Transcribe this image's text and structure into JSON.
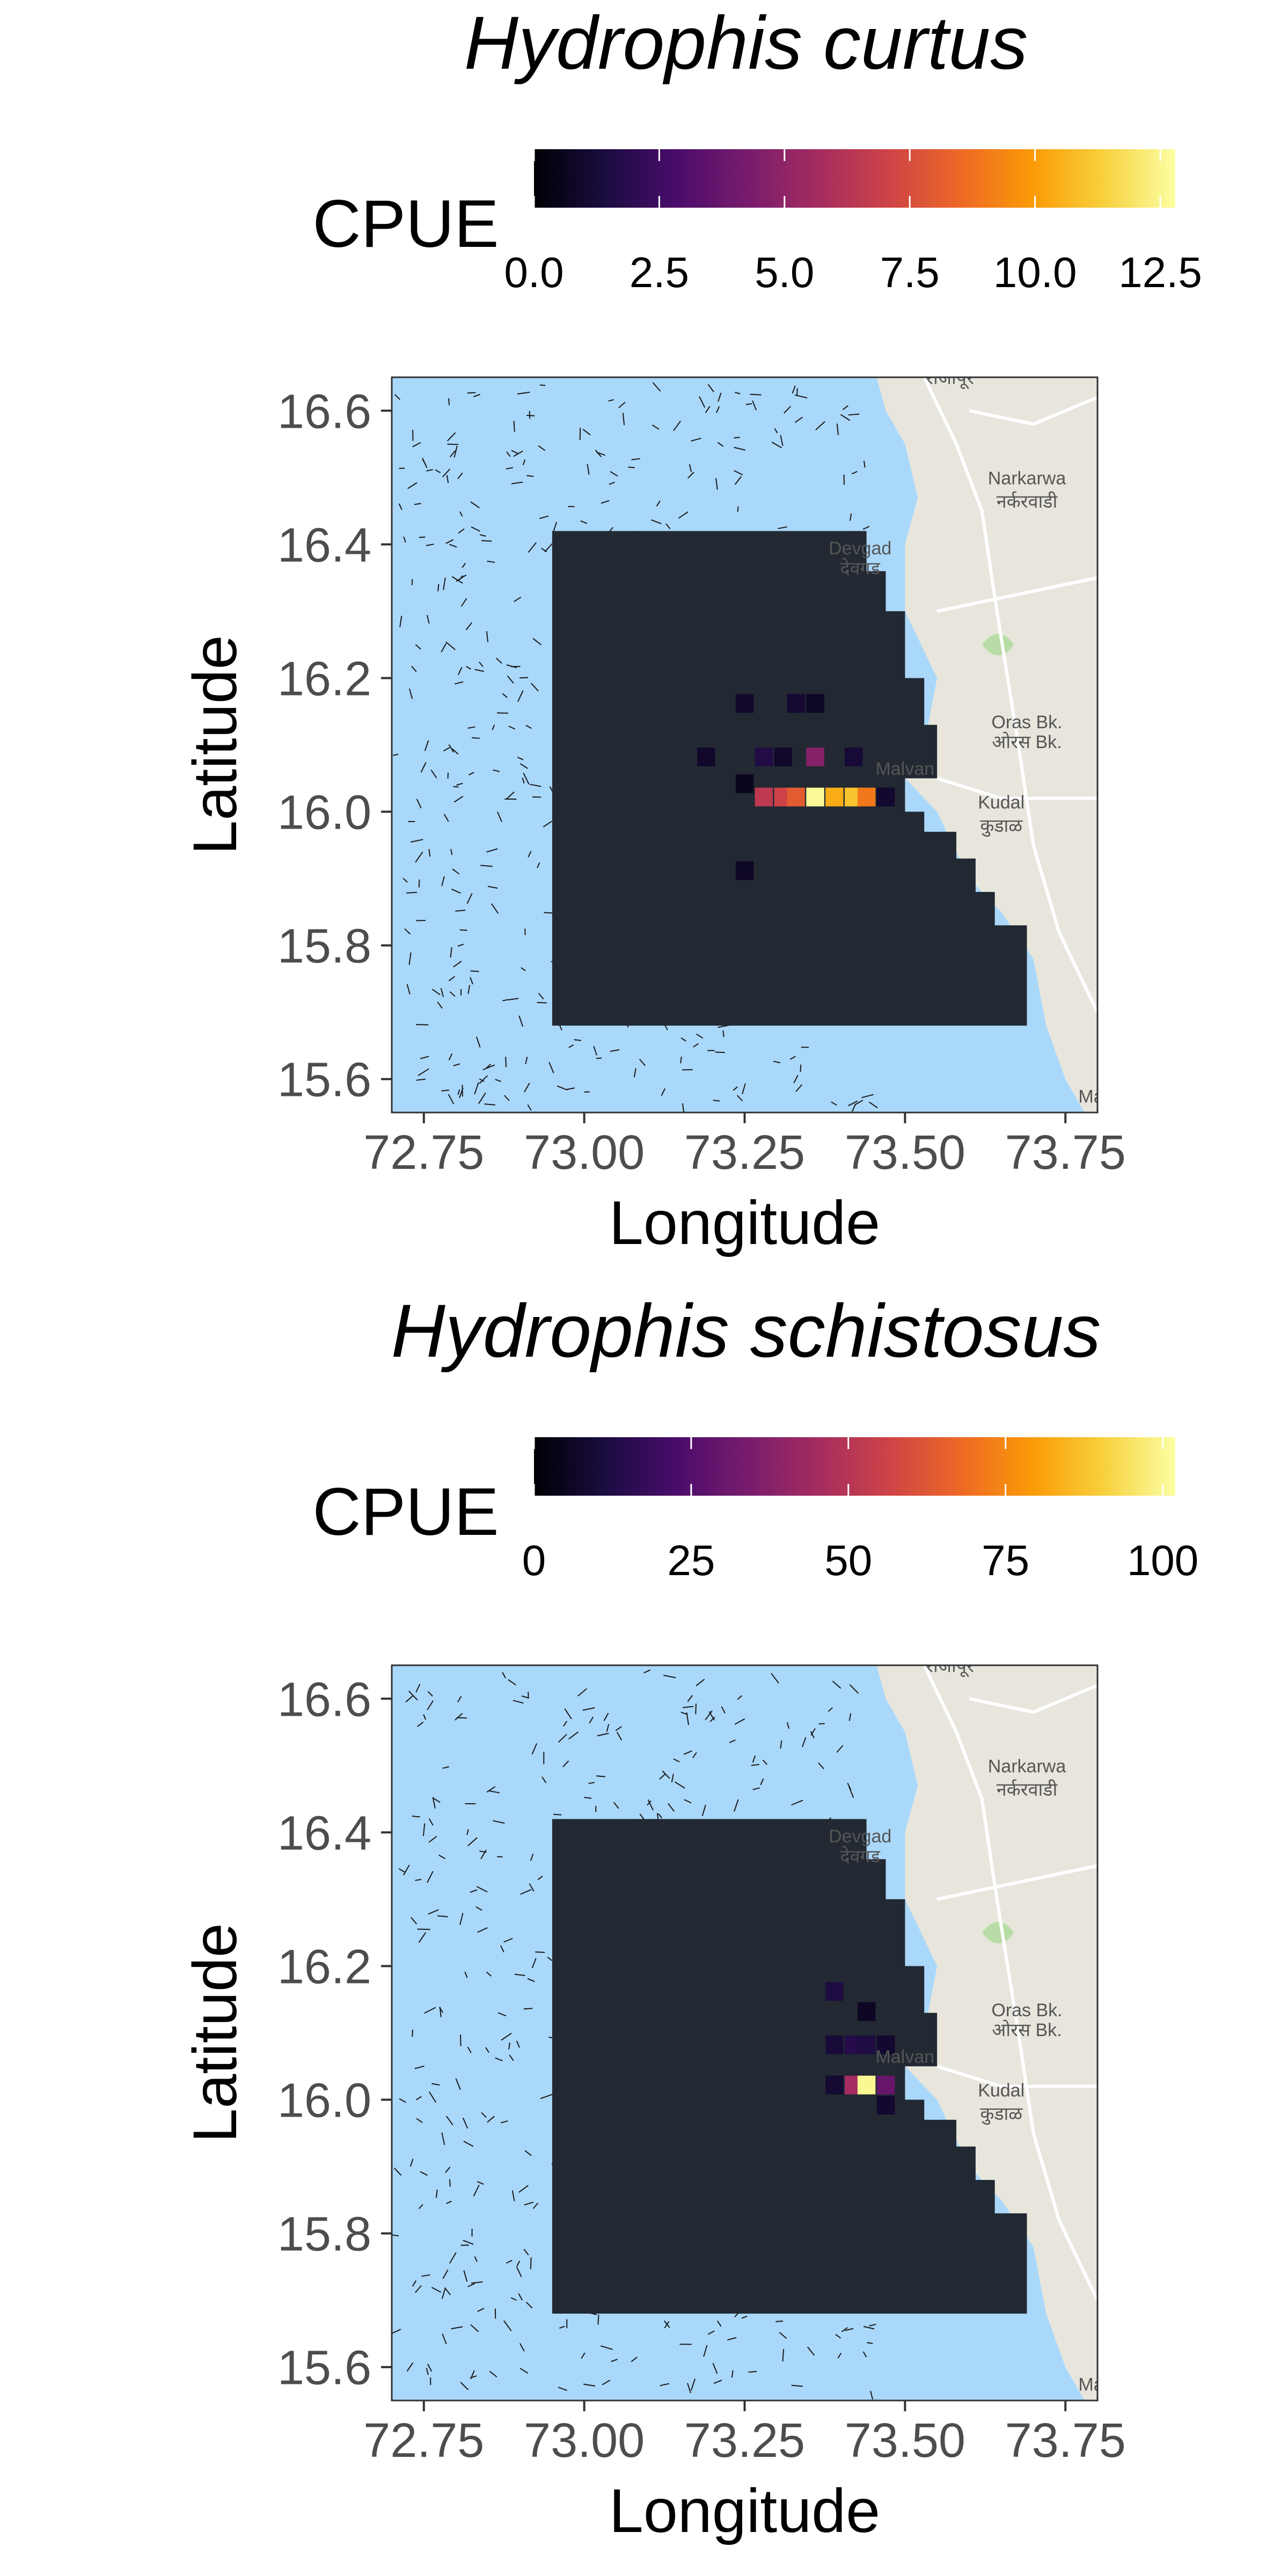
{
  "chart_data": [
    {
      "type": "heatmap",
      "title": "Hydrophis curtus",
      "xlabel": "Longitude",
      "ylabel": "Latitude",
      "xlim": [
        72.7,
        73.8
      ],
      "ylim": [
        15.55,
        16.65
      ],
      "x_ticks": [
        "72.75",
        "73.00",
        "73.25",
        "73.50",
        "73.75"
      ],
      "y_ticks": [
        "15.6",
        "15.8",
        "16.0",
        "16.2",
        "16.4",
        "16.6"
      ],
      "legend": {
        "title": "CPUE",
        "position": "top",
        "min": 0,
        "max": 12.8,
        "tick_labels": [
          "0.0",
          "2.5",
          "5.0",
          "7.5",
          "10.0",
          "12.5"
        ],
        "tick_values": [
          0,
          2.5,
          5,
          7.5,
          10,
          12.5
        ]
      },
      "grid": false,
      "cells": [
        {
          "lon": 73.25,
          "lat": 16.19,
          "cpue": 0.9
        },
        {
          "lon": 73.33,
          "lat": 16.19,
          "cpue": 1.1
        },
        {
          "lon": 73.36,
          "lat": 16.19,
          "cpue": 0.8
        },
        {
          "lon": 73.19,
          "lat": 16.11,
          "cpue": 0.9
        },
        {
          "lon": 73.28,
          "lat": 16.11,
          "cpue": 1.6
        },
        {
          "lon": 73.31,
          "lat": 16.11,
          "cpue": 0.9
        },
        {
          "lon": 73.36,
          "lat": 16.11,
          "cpue": 4.7
        },
        {
          "lon": 73.42,
          "lat": 16.11,
          "cpue": 1.2
        },
        {
          "lon": 73.25,
          "lat": 16.07,
          "cpue": 0.6
        },
        {
          "lon": 73.28,
          "lat": 16.05,
          "cpue": 6.5
        },
        {
          "lon": 73.31,
          "lat": 16.05,
          "cpue": 7.0
        },
        {
          "lon": 73.33,
          "lat": 16.05,
          "cpue": 8.0
        },
        {
          "lon": 73.36,
          "lat": 16.05,
          "cpue": 12.6
        },
        {
          "lon": 73.39,
          "lat": 16.05,
          "cpue": 10.4
        },
        {
          "lon": 73.42,
          "lat": 16.05,
          "cpue": 11.0
        },
        {
          "lon": 73.44,
          "lat": 16.05,
          "cpue": 9.0
        },
        {
          "lon": 73.47,
          "lat": 16.05,
          "cpue": 1.0
        },
        {
          "lon": 73.25,
          "lat": 15.94,
          "cpue": 0.8
        }
      ]
    },
    {
      "type": "heatmap",
      "title": "Hydrophis schistosus",
      "xlabel": "Longitude",
      "ylabel": "Latitude",
      "xlim": [
        72.7,
        73.8
      ],
      "ylim": [
        15.55,
        16.65
      ],
      "x_ticks": [
        "72.75",
        "73.00",
        "73.25",
        "73.50",
        "73.75"
      ],
      "y_ticks": [
        "15.6",
        "15.8",
        "16.0",
        "16.2",
        "16.4",
        "16.6"
      ],
      "legend": {
        "title": "CPUE",
        "position": "top",
        "min": 0,
        "max": 102,
        "tick_labels": [
          "0",
          "25",
          "50",
          "75",
          "100"
        ],
        "tick_values": [
          0,
          25,
          50,
          75,
          100
        ]
      },
      "grid": false,
      "cells": [
        {
          "lon": 73.39,
          "lat": 16.19,
          "cpue": 12
        },
        {
          "lon": 73.44,
          "lat": 16.16,
          "cpue": 6
        },
        {
          "lon": 73.39,
          "lat": 16.11,
          "cpue": 10
        },
        {
          "lon": 73.42,
          "lat": 16.11,
          "cpue": 14
        },
        {
          "lon": 73.44,
          "lat": 16.11,
          "cpue": 12
        },
        {
          "lon": 73.47,
          "lat": 16.11,
          "cpue": 8
        },
        {
          "lon": 73.39,
          "lat": 16.05,
          "cpue": 9
        },
        {
          "lon": 73.42,
          "lat": 16.05,
          "cpue": 45
        },
        {
          "lon": 73.44,
          "lat": 16.05,
          "cpue": 100
        },
        {
          "lon": 73.47,
          "lat": 16.05,
          "cpue": 30
        },
        {
          "lon": 73.47,
          "lat": 16.02,
          "cpue": 8
        }
      ]
    }
  ],
  "map_labels": [
    {
      "text": "राजापूर",
      "lon": 73.57,
      "lat": 16.64
    },
    {
      "text": "Narkarwa",
      "lon": 73.69,
      "lat": 16.49
    },
    {
      "text": "नर्करवाडी",
      "lon": 73.69,
      "lat": 16.455
    },
    {
      "text": "Devgad",
      "lon": 73.43,
      "lat": 16.385
    },
    {
      "text": "देवगड",
      "lon": 73.43,
      "lat": 16.355
    },
    {
      "text": "Oras Bk.",
      "lon": 73.69,
      "lat": 16.125
    },
    {
      "text": "ओरस Bk.",
      "lon": 73.69,
      "lat": 16.095
    },
    {
      "text": "Malvan",
      "lon": 73.5,
      "lat": 16.055
    },
    {
      "text": "Kudal",
      "lon": 73.65,
      "lat": 16.005
    },
    {
      "text": "कुडाळ",
      "lon": 73.65,
      "lat": 15.97
    },
    {
      "text": "Ma",
      "lon": 73.79,
      "lat": 15.565
    }
  ],
  "colors": {
    "sea": "#aad8fb",
    "land": "#e8e6dc",
    "study_area": "#222932",
    "cmap": [
      "#000004",
      "#1b0c41",
      "#4a0c6b",
      "#781c6d",
      "#a52c60",
      "#cf4446",
      "#ed6925",
      "#fb9b06",
      "#f7d13d",
      "#fcffa4"
    ]
  }
}
